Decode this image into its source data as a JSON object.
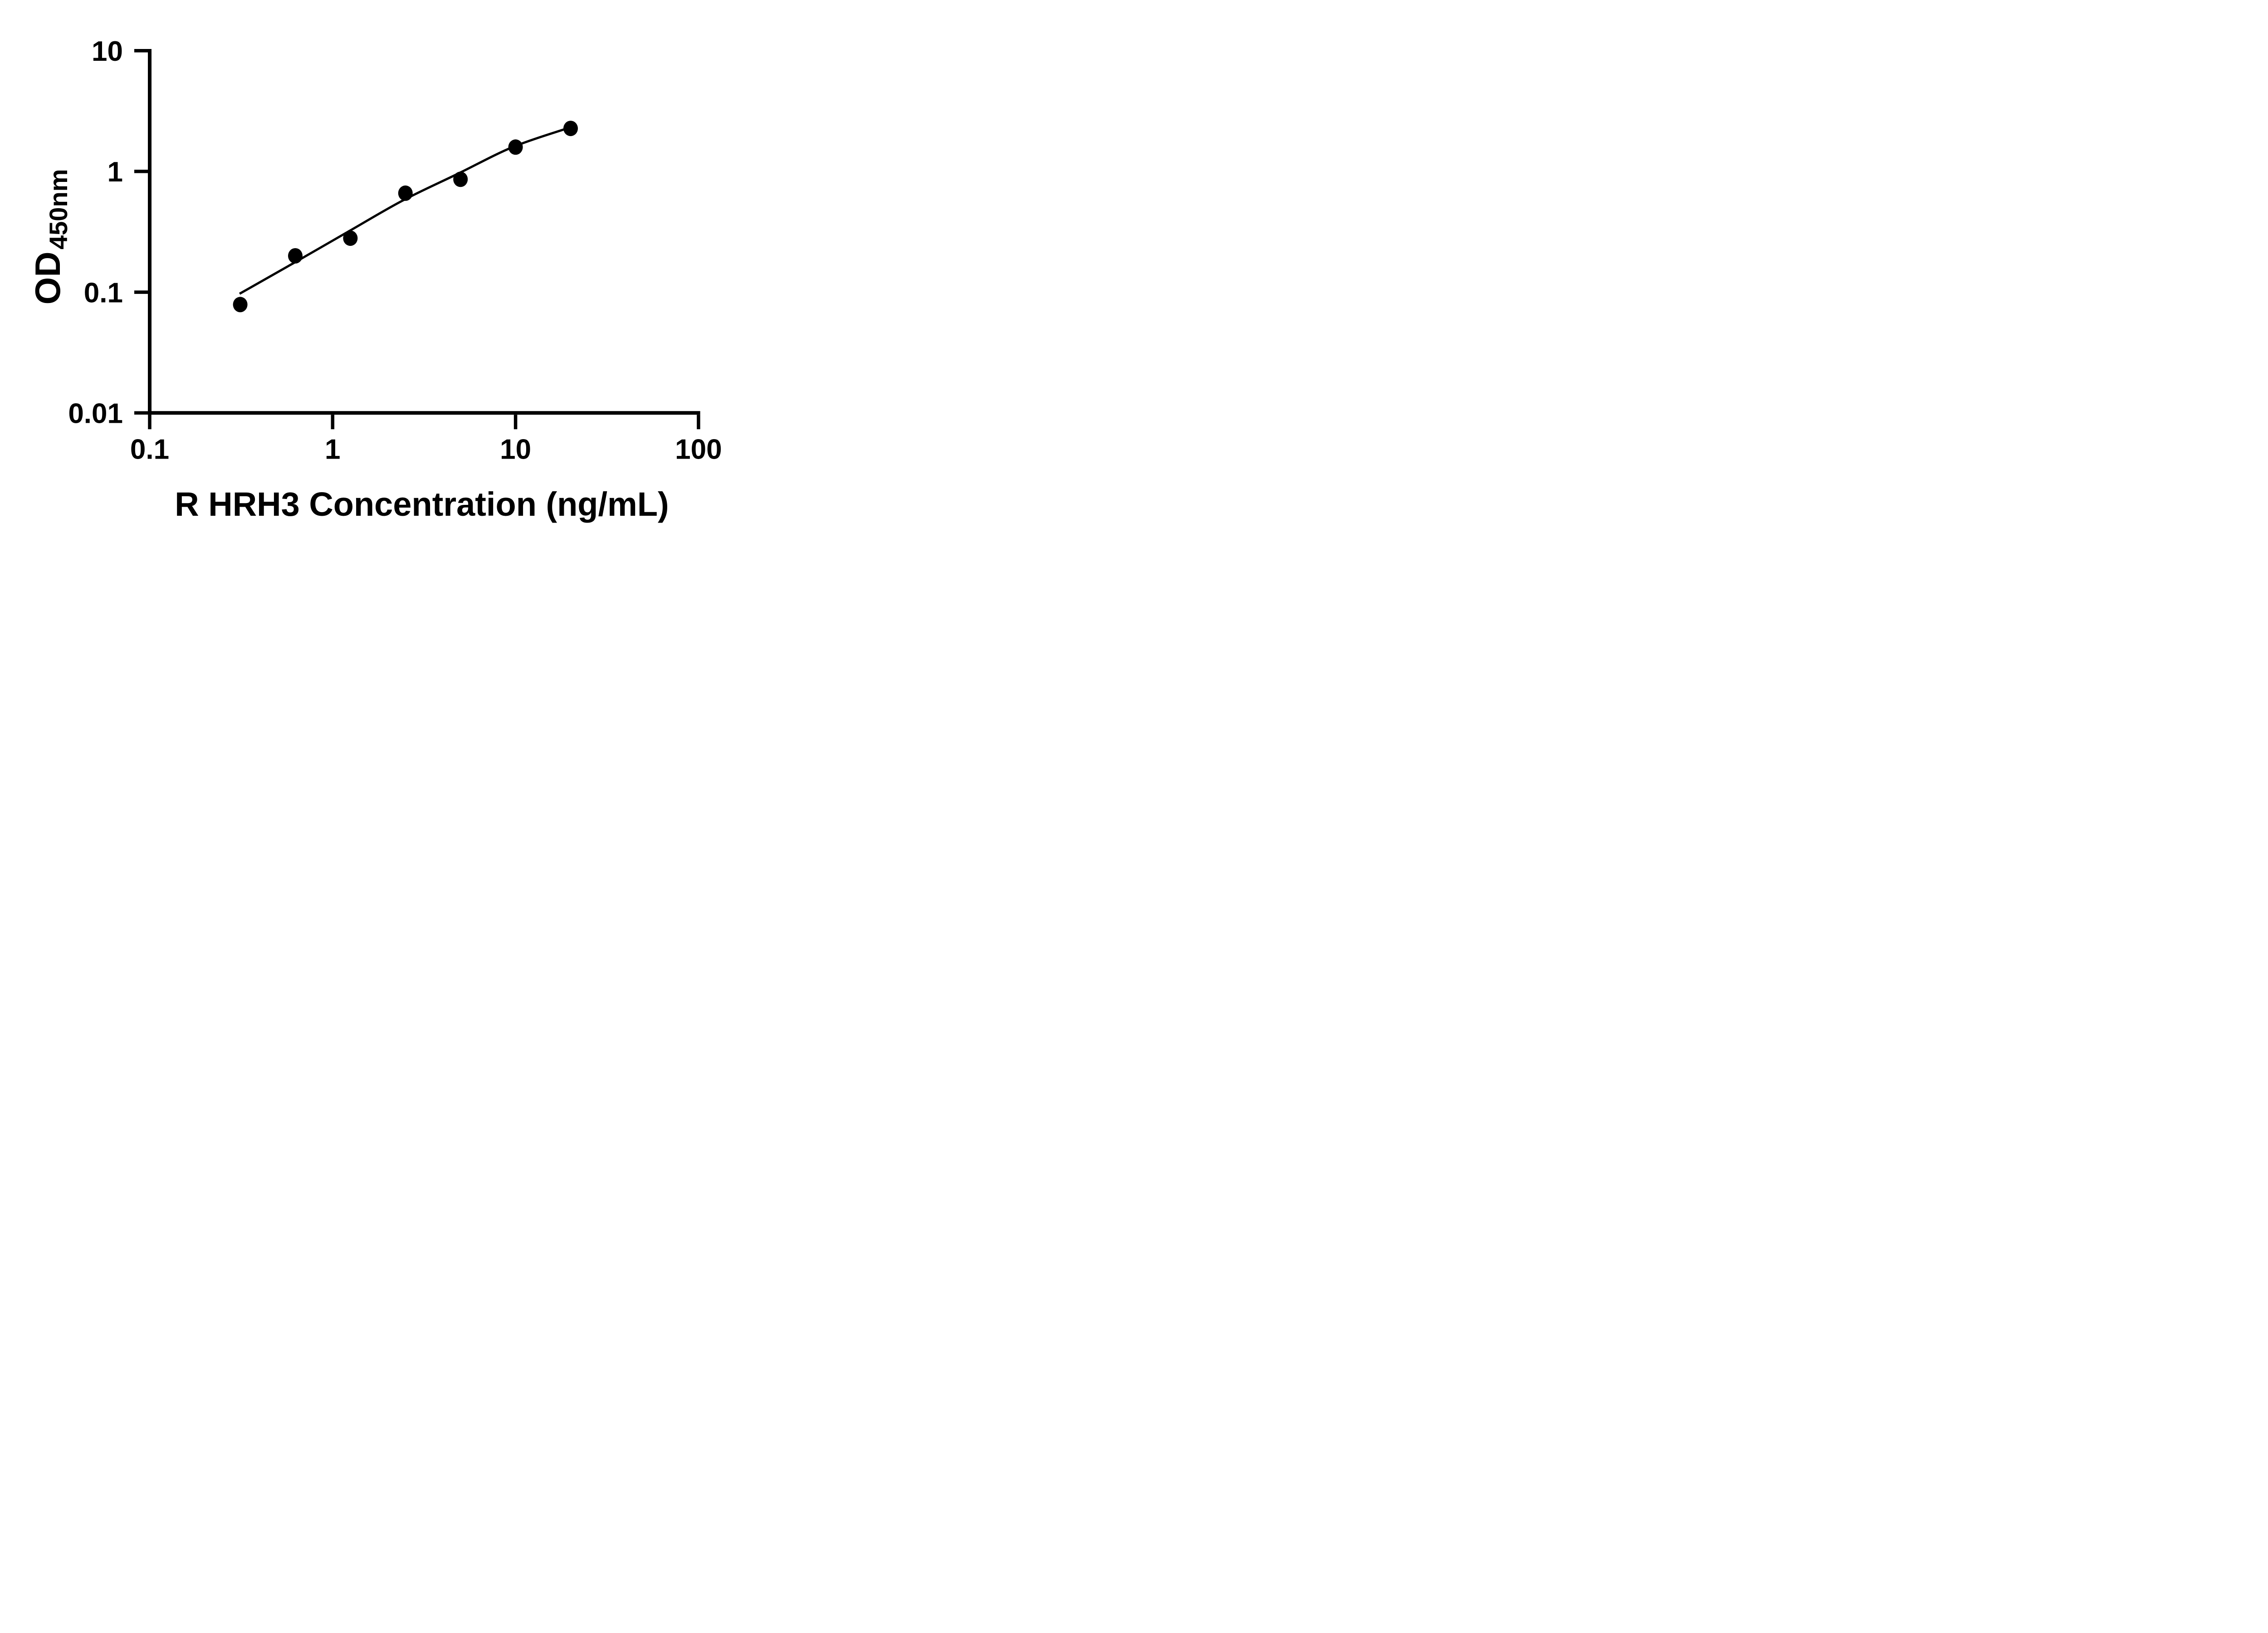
{
  "figure": {
    "background": "#ffffff",
    "ink_color": "#000000"
  },
  "chart_data": {
    "type": "scatter",
    "title": "",
    "xlabel": "R HRH3 Concentration (ng/mL)",
    "ylabel_main": "OD",
    "ylabel_sub": "450nm",
    "x_scale": "log10",
    "y_scale": "log10",
    "xlim": [
      0.1,
      100
    ],
    "ylim": [
      0.01,
      10
    ],
    "grid": false,
    "legend": "none",
    "x_ticks": [
      {
        "value": 0.1,
        "label": "0.1"
      },
      {
        "value": 1,
        "label": "1"
      },
      {
        "value": 10,
        "label": "10"
      },
      {
        "value": 100,
        "label": "100"
      }
    ],
    "y_ticks": [
      {
        "value": 0.01,
        "label": "0.01"
      },
      {
        "value": 0.1,
        "label": "0.1"
      },
      {
        "value": 1,
        "label": "1"
      },
      {
        "value": 10,
        "label": "10"
      }
    ],
    "series": [
      {
        "name": "standard-points",
        "marker": "filled-circle",
        "color": "#000000",
        "points": [
          {
            "x": 0.3125,
            "y": 0.079
          },
          {
            "x": 0.625,
            "y": 0.2
          },
          {
            "x": 1.25,
            "y": 0.28
          },
          {
            "x": 2.5,
            "y": 0.66
          },
          {
            "x": 5,
            "y": 0.86
          },
          {
            "x": 10,
            "y": 1.59
          },
          {
            "x": 20,
            "y": 2.27
          }
        ]
      }
    ],
    "fit_curve": {
      "name": "fitted-standard-curve",
      "color": "#000000",
      "points": [
        {
          "x": 0.31,
          "y": 0.097
        },
        {
          "x": 0.615,
          "y": 0.175
        },
        {
          "x": 1.23,
          "y": 0.32
        },
        {
          "x": 2.42,
          "y": 0.575
        },
        {
          "x": 4.83,
          "y": 0.955
        },
        {
          "x": 9.63,
          "y": 1.59
        },
        {
          "x": 19.1,
          "y": 2.27
        }
      ]
    }
  }
}
